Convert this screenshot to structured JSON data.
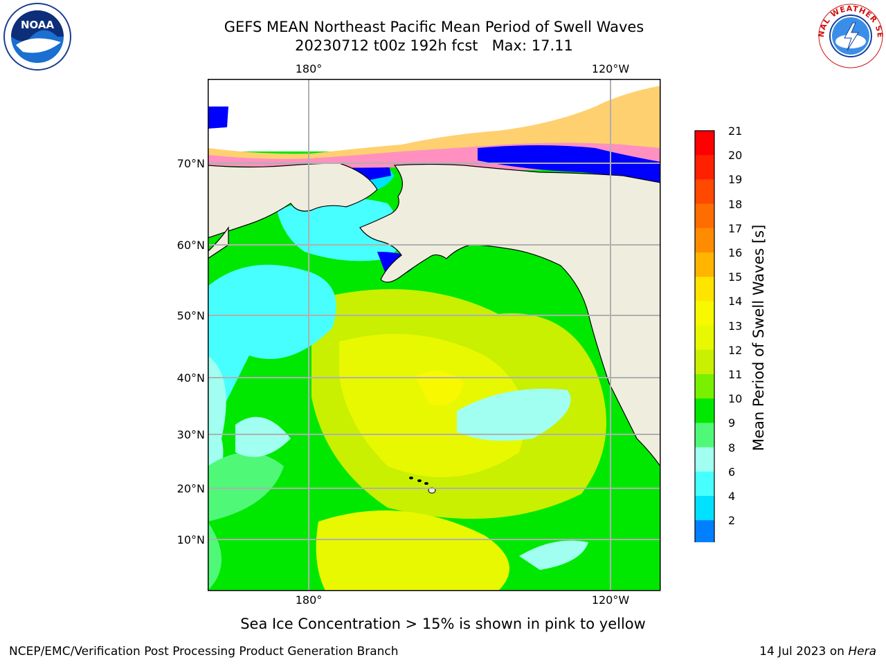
{
  "title": {
    "line1": "GEFS MEAN Northeast Pacific Mean Period of Swell Waves",
    "line2": "20230712 t00z 192h fcst   Max: 17.11"
  },
  "axes": {
    "lon_labels_top": [
      "180°",
      "120°W"
    ],
    "lon_labels_bottom": [
      "180°",
      "120°W"
    ],
    "lat_labels": [
      "70°N",
      "60°N",
      "50°N",
      "40°N",
      "30°N",
      "20°N",
      "10°N"
    ]
  },
  "colorbar": {
    "label": "Mean Period of Swell Waves [s]",
    "ticks": [
      "21",
      "20",
      "19",
      "18",
      "17",
      "16",
      "15",
      "14",
      "13",
      "12",
      "11",
      "10",
      "9",
      "8",
      "6",
      "4",
      "2"
    ],
    "colors": [
      "#ff0000",
      "#ff2000",
      "#ff4800",
      "#ff6c00",
      "#ff8c00",
      "#ffb400",
      "#ffe400",
      "#f8f800",
      "#e8f800",
      "#c8f000",
      "#78f000",
      "#00e800",
      "#50f878",
      "#a0fff0",
      "#48ffff",
      "#00e0ff",
      "#0080ff"
    ],
    "extend_color": "#0000ff"
  },
  "map": {
    "land_color": "#efedde",
    "ice_colors": [
      "#ff40ff",
      "#ff90c0",
      "#ffb080",
      "#ffd070"
    ],
    "low_period_color": "#0000ff",
    "grid_color": "#b0b0b0"
  },
  "footnote": "Sea Ice Concentration > 15% is shown in pink to yellow",
  "credit_left": "NCEP/EMC/Verification Post Processing Product Generation Branch",
  "credit_right_prefix": "14 Jul 2023 on ",
  "credit_right_host": "Hera",
  "logos": {
    "noaa_text": "NOAA",
    "nws_text": "NATIONAL WEATHER SERVICE"
  }
}
